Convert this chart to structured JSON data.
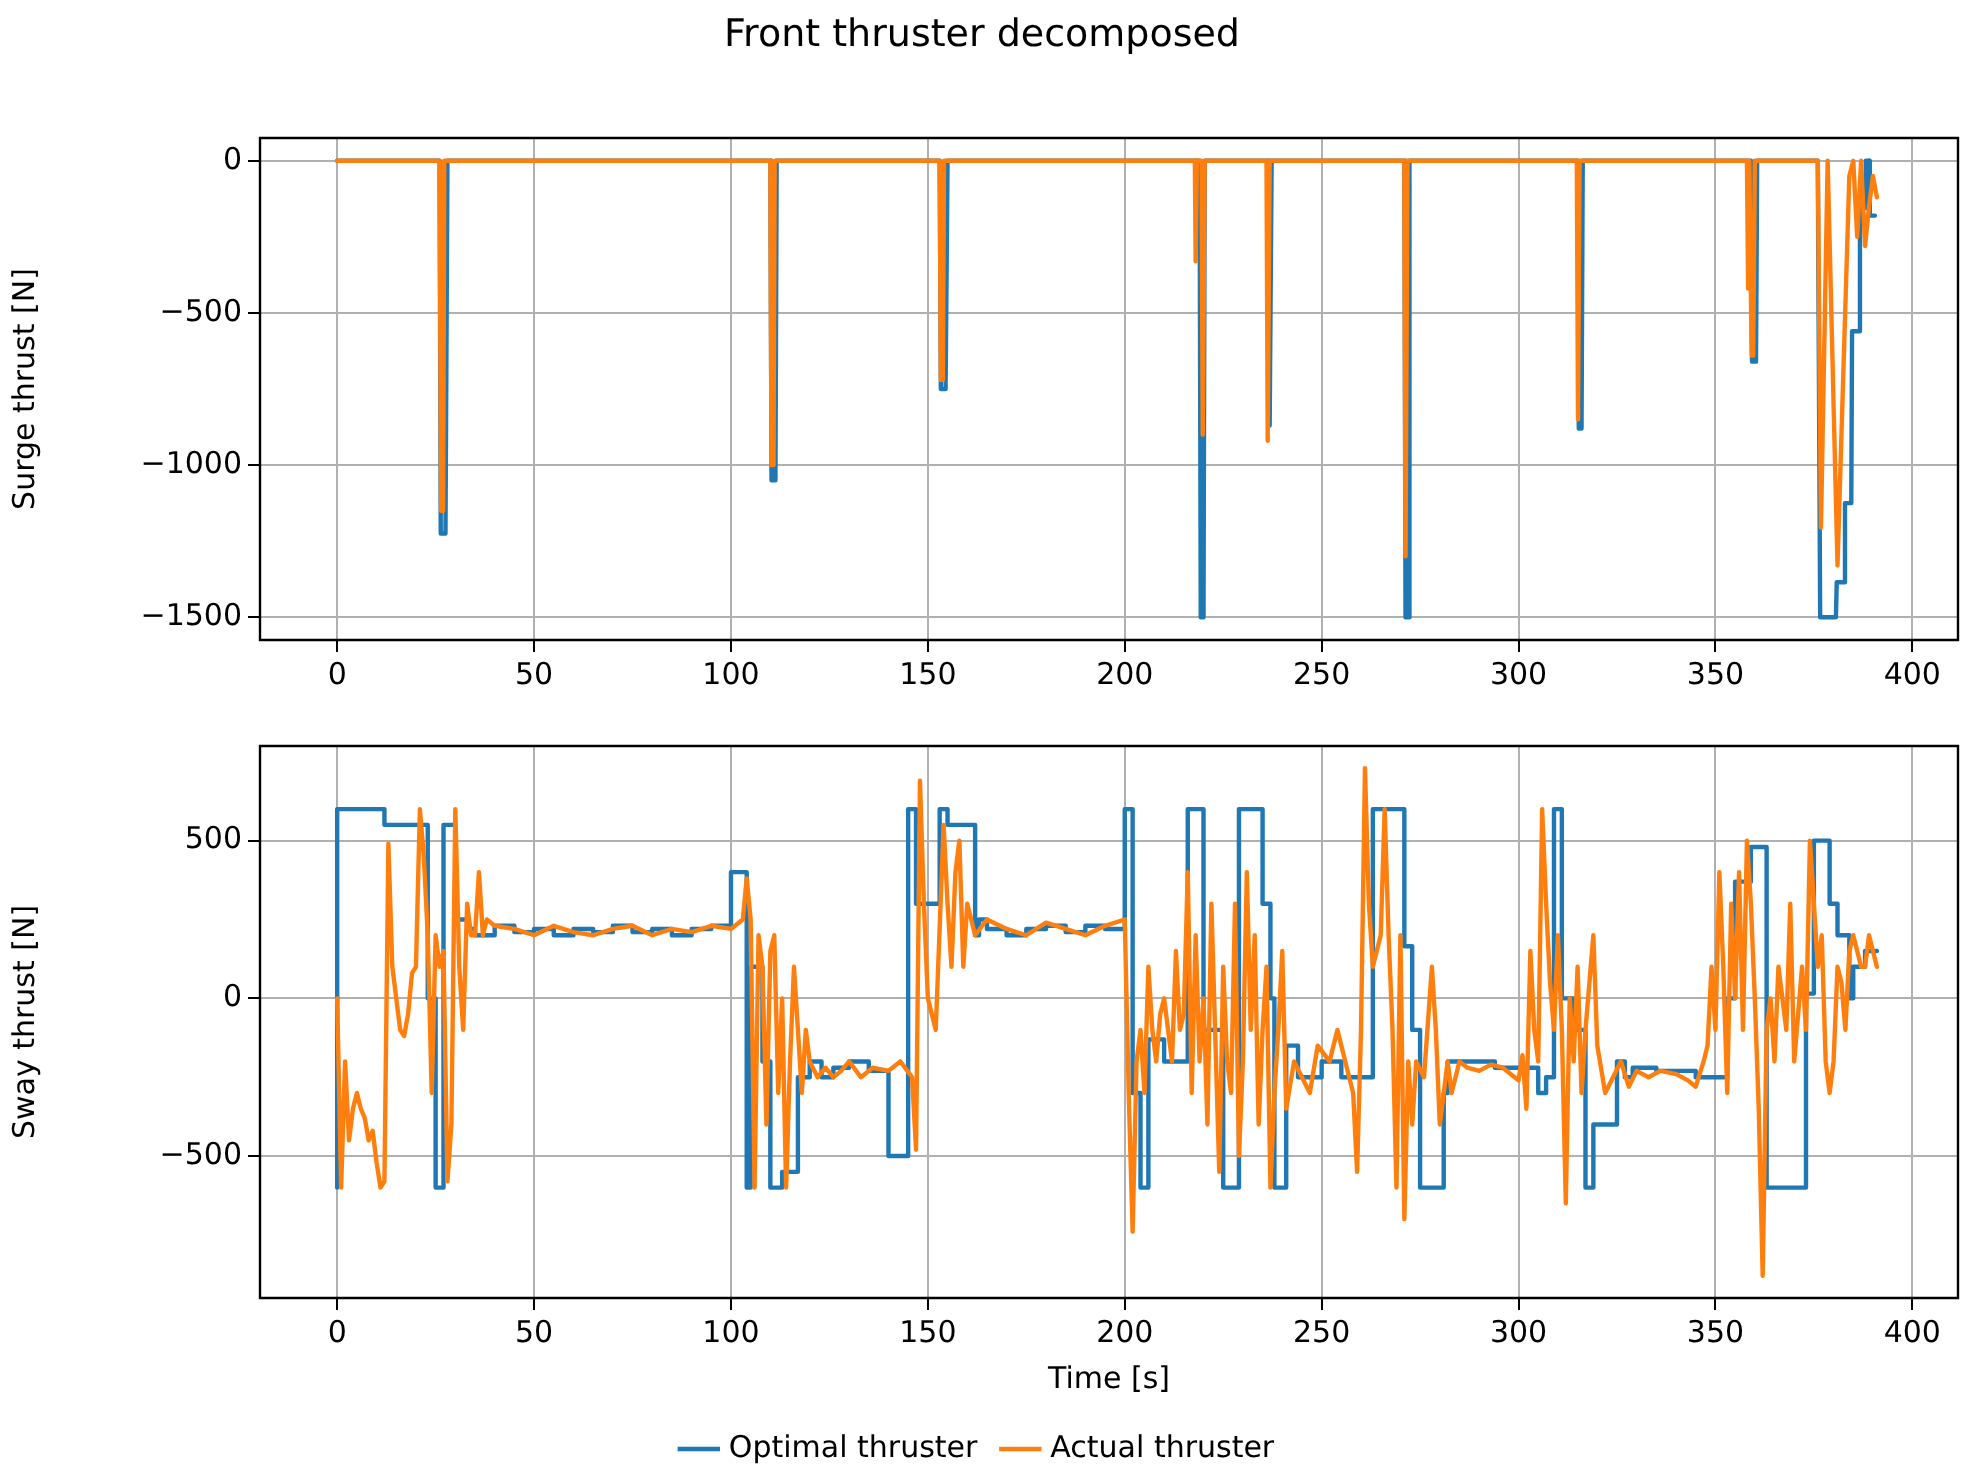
{
  "chart_data": [
    {
      "type": "line",
      "title": "Front thruster decomposed",
      "ylabel": "Surge thrust [N]",
      "xlim": [
        -19.6,
        411.6
      ],
      "xticks": [
        0,
        50,
        100,
        150,
        200,
        250,
        300,
        350,
        400
      ],
      "ylim": [
        -1575,
        75
      ],
      "yticks": [
        {
          "value": -1500,
          "label": "−1500"
        },
        {
          "value": -1000,
          "label": "−1000"
        },
        {
          "value": -500,
          "label": "−500"
        },
        {
          "value": 0,
          "label": "0"
        }
      ],
      "grid": true,
      "legend": false,
      "series": [
        {
          "type": "line",
          "color": "#1f77b4",
          "x": [
            0,
            26,
            26.3,
            27.5,
            28,
            110,
            110.3,
            111.3,
            111.6,
            153,
            153.3,
            154.5,
            155,
            219,
            219.3,
            220,
            220.3,
            236.5,
            236.8,
            237.3,
            271,
            271.3,
            272,
            272.3,
            315,
            315.3,
            316,
            316.3,
            359,
            359.3,
            360.3,
            360.6,
            376,
            376.6,
            380.6,
            380.8,
            382.7,
            382.9,
            384.5,
            384.7,
            386.5,
            386.7,
            388,
            388.2,
            389,
            389.2,
            390.5
          ],
          "values": [
            0,
            0,
            -1225,
            -1225,
            0,
            0,
            -1050,
            -1050,
            0,
            0,
            -750,
            -750,
            0,
            0,
            -1500,
            -1500,
            0,
            0,
            -870,
            0,
            0,
            -1500,
            -1500,
            0,
            0,
            -880,
            -880,
            0,
            0,
            -660,
            -660,
            0,
            0,
            -1500,
            -1500,
            -1385,
            -1385,
            -1125,
            -1125,
            -560,
            -560,
            -155,
            -155,
            0,
            0,
            -180,
            -180
          ]
        },
        {
          "type": "line",
          "color": "#ff7f0e",
          "x": [
            0,
            26,
            26.4,
            26.9,
            27.2,
            110,
            110.3,
            110.8,
            111.1,
            153,
            153.3,
            153.8,
            154.1,
            217.8,
            218,
            218.3,
            219.5,
            219.8,
            220.3,
            236,
            236.3,
            236.8,
            271,
            271.3,
            271.8,
            314.8,
            315.1,
            315.5,
            358,
            358.3,
            358.6,
            359.2,
            359.6,
            360,
            376,
            376.8,
            378.5,
            381,
            384,
            385,
            386,
            387,
            388,
            389,
            390,
            391
          ],
          "values": [
            0,
            0,
            -1150,
            -1150,
            0,
            0,
            -1000,
            -1000,
            0,
            0,
            -720,
            -720,
            0,
            0,
            -330,
            0,
            0,
            -900,
            0,
            0,
            -920,
            0,
            0,
            -1300,
            0,
            0,
            -850,
            0,
            0,
            -420,
            0,
            -640,
            -640,
            0,
            0,
            -1205,
            0,
            -1330,
            -50,
            0,
            -250,
            0,
            -280,
            -150,
            -50,
            -120
          ]
        }
      ]
    },
    {
      "type": "line",
      "xlabel": "Time [s]",
      "ylabel": "Sway thrust [N]",
      "xlim": [
        -19.6,
        411.6
      ],
      "xticks": [
        0,
        50,
        100,
        150,
        200,
        250,
        300,
        350,
        400
      ],
      "ylim": [
        -950,
        800
      ],
      "yticks": [
        {
          "value": -500,
          "label": "−500"
        },
        {
          "value": 0,
          "label": "0"
        },
        500
      ],
      "grid": true,
      "legend": "bottom",
      "series": [
        {
          "type": "step",
          "name": "Optimal thruster",
          "color": "#1f77b4",
          "x": [
            0,
            12,
            23,
            25,
            27,
            30,
            33,
            35,
            40,
            45,
            50,
            55,
            60,
            65,
            70,
            75,
            80,
            85,
            90,
            95,
            100,
            104,
            105,
            108,
            110,
            113,
            117,
            120,
            123,
            126,
            130,
            135,
            140,
            145,
            147,
            153,
            155,
            162,
            163,
            165,
            170,
            175,
            180,
            185,
            190,
            195,
            200,
            202,
            204,
            206,
            210,
            216,
            220,
            225,
            229,
            235,
            237,
            238,
            241,
            244,
            250,
            255,
            263,
            271,
            273,
            275,
            281,
            282,
            294,
            305,
            307,
            309,
            311,
            314,
            317,
            319,
            325,
            327,
            329,
            335,
            345,
            353,
            355,
            356,
            359,
            361,
            363,
            365,
            373,
            375,
            379,
            381,
            384,
            385,
            388,
            390,
            391
          ],
          "values": [
            -600,
            600,
            550,
            0,
            -600,
            550,
            250,
            220,
            200,
            230,
            210,
            220,
            200,
            220,
            210,
            230,
            210,
            220,
            200,
            220,
            230,
            400,
            -600,
            100,
            -200,
            -600,
            -550,
            -250,
            -200,
            -250,
            -220,
            -200,
            -230,
            -500,
            600,
            300,
            600,
            550,
            200,
            250,
            220,
            200,
            220,
            230,
            210,
            230,
            220,
            600,
            -300,
            -600,
            -130,
            -200,
            600,
            -100,
            -600,
            600,
            300,
            0,
            -600,
            -150,
            -250,
            -200,
            -250,
            600,
            165,
            -100,
            -600,
            -300,
            -200,
            -220,
            -300,
            -250,
            600,
            0,
            -100,
            -600,
            -400,
            -200,
            -250,
            -220,
            -230,
            -250,
            0,
            370,
            370,
            480,
            480,
            -600,
            -600,
            15,
            500,
            300,
            200,
            0,
            100,
            150,
            150
          ]
        },
        {
          "type": "line",
          "name": "Actual thruster",
          "color": "#ff7f0e",
          "x": [
            0,
            1,
            2,
            3,
            4,
            5,
            6,
            7,
            8,
            9,
            10,
            11,
            12,
            13,
            14,
            16,
            17,
            18,
            19,
            20,
            21,
            22,
            23,
            24,
            25,
            26,
            27,
            28,
            29,
            30,
            31,
            32,
            33,
            34,
            35,
            36,
            37,
            38,
            40,
            45,
            50,
            55,
            60,
            65,
            70,
            75,
            80,
            85,
            90,
            95,
            100,
            103,
            104,
            105,
            106,
            107,
            108,
            109,
            110,
            111,
            112,
            113,
            114,
            115,
            116,
            117,
            118,
            119,
            120,
            122,
            124,
            126,
            128,
            130,
            133,
            136,
            140,
            143,
            146,
            147,
            148,
            149,
            150,
            151,
            152,
            154,
            155,
            156,
            157,
            158,
            159,
            160,
            162,
            165,
            170,
            175,
            180,
            185,
            190,
            195,
            200,
            201,
            202,
            203,
            204,
            205,
            206,
            207,
            208,
            209,
            210,
            212,
            213,
            214,
            215,
            216,
            217,
            218,
            219,
            220,
            221,
            222,
            224,
            225,
            226,
            227,
            228,
            229,
            230,
            231,
            232,
            233,
            234,
            235,
            236,
            237,
            238,
            239,
            240,
            241,
            243,
            245,
            247,
            249,
            252,
            254,
            256,
            258,
            259,
            260,
            261,
            262,
            263,
            265,
            266,
            267,
            268,
            269,
            270,
            271,
            272,
            273,
            274,
            276,
            278,
            279,
            280,
            281,
            282,
            283,
            285,
            287,
            290,
            293,
            296,
            299,
            300,
            301,
            302,
            303,
            304,
            305,
            306,
            307,
            308,
            309,
            310,
            311,
            312,
            313,
            314,
            315,
            316,
            317,
            319,
            320,
            322,
            324,
            326,
            328,
            330,
            333,
            336,
            340,
            343,
            345,
            347,
            348,
            349,
            350,
            351,
            352,
            353,
            354,
            355,
            356,
            357,
            358,
            359,
            360,
            361,
            362,
            363,
            364,
            365,
            366,
            367,
            368,
            369,
            370,
            372,
            373,
            374,
            375,
            376,
            377,
            378,
            379,
            380,
            381,
            382,
            383,
            384,
            385,
            386,
            387,
            388,
            389,
            390,
            391
          ],
          "values": [
            0,
            -600,
            -200,
            -450,
            -350,
            -300,
            -350,
            -380,
            -450,
            -420,
            -520,
            -600,
            -580,
            490,
            100,
            -100,
            -120,
            -50,
            80,
            100,
            600,
            450,
            200,
            -300,
            200,
            100,
            150,
            -580,
            -400,
            600,
            100,
            -100,
            300,
            200,
            200,
            400,
            200,
            250,
            230,
            220,
            200,
            230,
            210,
            200,
            220,
            230,
            200,
            220,
            210,
            230,
            220,
            250,
            380,
            250,
            -600,
            200,
            100,
            -400,
            150,
            200,
            -300,
            0,
            -600,
            -200,
            100,
            -100,
            -300,
            -100,
            -200,
            -250,
            -220,
            -250,
            -230,
            -200,
            -250,
            -220,
            -230,
            -200,
            -250,
            -480,
            690,
            300,
            0,
            -50,
            -100,
            550,
            300,
            100,
            400,
            500,
            100,
            300,
            200,
            250,
            220,
            200,
            240,
            220,
            200,
            230,
            250,
            -300,
            -740,
            -200,
            -100,
            -300,
            100,
            -100,
            -200,
            -50,
            0,
            -200,
            150,
            -100,
            -50,
            400,
            -300,
            200,
            -200,
            0,
            -400,
            300,
            -550,
            100,
            -200,
            -300,
            300,
            -500,
            -200,
            400,
            -100,
            200,
            -400,
            -100,
            100,
            -600,
            -300,
            -100,
            150,
            -350,
            -200,
            -250,
            -300,
            -150,
            -200,
            -100,
            -200,
            -300,
            -550,
            -100,
            730,
            300,
            100,
            200,
            600,
            200,
            -100,
            -600,
            200,
            -700,
            -200,
            -400,
            -200,
            -250,
            100,
            -100,
            -400,
            -300,
            -200,
            -300,
            -200,
            -220,
            -230,
            -210,
            -220,
            -250,
            -260,
            -180,
            -350,
            150,
            -100,
            -200,
            600,
            300,
            50,
            -100,
            200,
            -100,
            -650,
            0,
            -200,
            100,
            -300,
            -100,
            200,
            -150,
            -300,
            -250,
            -200,
            -280,
            -230,
            -250,
            -230,
            -240,
            -260,
            -280,
            -200,
            -150,
            100,
            -100,
            400,
            100,
            -300,
            300,
            0,
            400,
            -100,
            500,
            300,
            0,
            -350,
            -880,
            -100,
            0,
            -200,
            100,
            0,
            -100,
            300,
            -200,
            100,
            -100,
            500,
            300,
            100,
            200,
            -200,
            -300,
            -200,
            100,
            50,
            -100,
            150,
            200,
            150,
            100,
            100,
            200,
            150,
            100
          ]
        }
      ]
    }
  ]
}
